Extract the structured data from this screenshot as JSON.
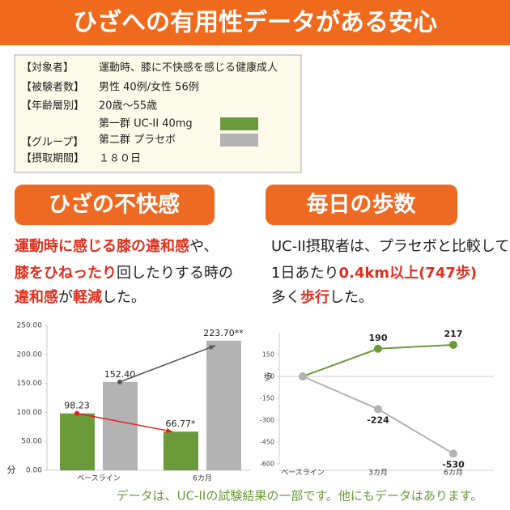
{
  "header": {
    "title": "ひざへの有用性データがある安心"
  },
  "info": {
    "rows": [
      {
        "label": "【対象者】",
        "value": "運動時、膝に不快感を感じる健康成人"
      },
      {
        "label": "【被験者数】",
        "value": "男性 40例/女性 56例"
      },
      {
        "label": "【年齢層別】",
        "value": "20歳～55歳"
      },
      {
        "label": "【グループ】"
      },
      {
        "label": "【摂取期間】",
        "value": "１８０日"
      }
    ]
  },
  "sections": [
    {
      "heading": "ひざの不快感",
      "lines": [
        [
          {
            "text": "運動時に感じる膝の違和感",
            "color": "#e0301e"
          },
          {
            "text": "や、",
            "color": "#222222"
          }
        ],
        [
          {
            "text": "膝をひねったり",
            "color": "#e0301e"
          },
          {
            "text": "回したりする時の",
            "color": "#222222"
          }
        ],
        [
          {
            "text": "違和感",
            "color": "#e0301e"
          },
          {
            "text": "が",
            "color": "#222222"
          },
          {
            "text": "軽減",
            "color": "#e0301e"
          },
          {
            "text": "した。",
            "color": "#222222"
          }
        ]
      ]
    },
    {
      "heading": "毎日の歩数",
      "lines": [
        [
          {
            "text": "UC-II摂取者は、プラセボと比較して",
            "color": "#222222"
          }
        ],
        [
          {
            "text": "1日あたり",
            "color": "#222222"
          },
          {
            "text": "0.4km以上(747歩)",
            "color": "#e0301e"
          }
        ],
        [
          {
            "text": "多く",
            "color": "#222222"
          },
          {
            "text": "歩行",
            "color": "#e0301e"
          },
          {
            "text": "した。",
            "color": "#222222"
          }
        ]
      ]
    }
  ],
  "chart_data": [
    {
      "type": "bar",
      "y_label": "分",
      "categories": [
        "ベースライン",
        "6カ月"
      ],
      "series": [
        {
          "name": "第一群 UC-II 40mg",
          "color": "#6a9a3a",
          "values": [
            98.23,
            66.77
          ],
          "value_labels": [
            "98.23",
            "66.77*"
          ]
        },
        {
          "name": "第二群 プラセボ",
          "color": "#b3b3b3",
          "values": [
            152.4,
            223.7
          ],
          "value_labels": [
            "152.40",
            "223.70**"
          ]
        }
      ],
      "ylim": [
        0,
        250
      ],
      "yticks": [
        {
          "value": 0,
          "label": "0.00"
        },
        {
          "value": 50,
          "label": "50.00"
        },
        {
          "value": 100,
          "label": "100.00"
        },
        {
          "value": 150,
          "label": "150.00"
        },
        {
          "value": 200,
          "label": "200.00"
        },
        {
          "value": 250,
          "label": "250.00"
        }
      ]
    },
    {
      "type": "line",
      "y_label": "歩",
      "categories": [
        "ベースライン",
        "3カ月",
        "6カ月"
      ],
      "series": [
        {
          "color": "#6a9a3a",
          "values": [
            0,
            190,
            217
          ],
          "value_labels": [
            null,
            "190",
            "217"
          ]
        },
        {
          "color": "#b3b3b3",
          "values": [
            0,
            -224,
            -530
          ],
          "value_labels": [
            null,
            "-224",
            "-530"
          ]
        }
      ],
      "ylim": [
        -600,
        300
      ],
      "yticks": [
        -600,
        -450,
        -300,
        -150,
        0,
        150
      ]
    }
  ],
  "footer": {
    "note": "データは、UC-IIの試験結果の一部です。他にもデータはあります。"
  }
}
